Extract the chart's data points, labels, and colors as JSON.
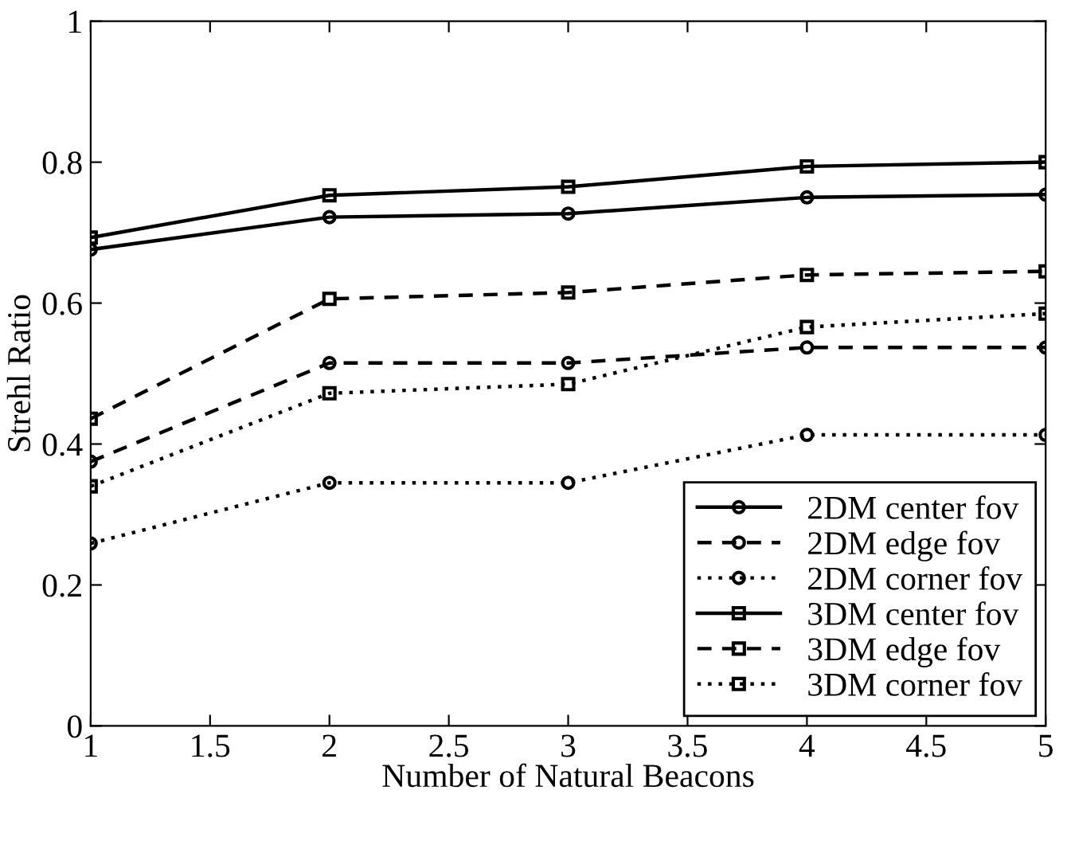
{
  "chart_data": {
    "type": "line",
    "xlabel": "Number of Natural Beacons",
    "ylabel": "Strehl Ratio",
    "x": [
      1,
      2,
      3,
      4,
      5
    ],
    "series": [
      {
        "name": "2DM center fov",
        "color": "#000000",
        "line_style": "solid",
        "marker": "circle",
        "values": [
          0.676,
          0.722,
          0.727,
          0.75,
          0.754
        ]
      },
      {
        "name": "2DM edge fov",
        "color": "#000000",
        "line_style": "dashed",
        "marker": "circle",
        "values": [
          0.375,
          0.515,
          0.515,
          0.537,
          0.537
        ]
      },
      {
        "name": "2DM corner fov",
        "color": "#000000",
        "line_style": "dotted",
        "marker": "circle",
        "values": [
          0.259,
          0.345,
          0.345,
          0.413,
          0.413
        ]
      },
      {
        "name": "3DM center fov",
        "color": "#000000",
        "line_style": "solid",
        "marker": "square",
        "values": [
          0.693,
          0.753,
          0.765,
          0.794,
          0.8
        ]
      },
      {
        "name": "3DM edge fov",
        "color": "#000000",
        "line_style": "dashed",
        "marker": "square",
        "values": [
          0.436,
          0.606,
          0.615,
          0.64,
          0.645
        ]
      },
      {
        "name": "3DM corner fov",
        "color": "#000000",
        "line_style": "dotted",
        "marker": "square",
        "values": [
          0.34,
          0.472,
          0.485,
          0.566,
          0.585
        ]
      }
    ],
    "xlim": [
      1,
      5
    ],
    "xticks": [
      1,
      1.5,
      2,
      2.5,
      3,
      3.5,
      4,
      4.5,
      5
    ],
    "ylim": [
      0,
      1
    ],
    "yticks": [
      0,
      0.2,
      0.4,
      0.6,
      0.8,
      1
    ],
    "grid": false,
    "legend": "bottom right"
  }
}
